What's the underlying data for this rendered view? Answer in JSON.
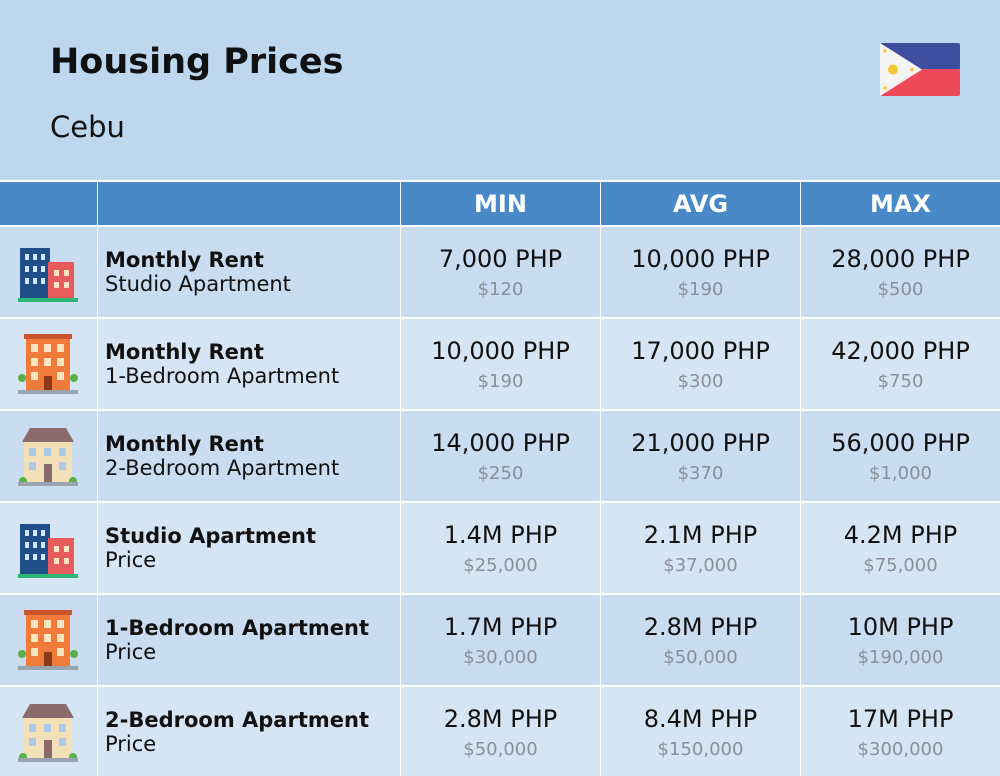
{
  "header": {
    "title": "Housing Prices",
    "subtitle": "Cebu"
  },
  "table": {
    "columns": [
      "MIN",
      "AVG",
      "MAX"
    ],
    "rows": [
      {
        "title": "Monthly Rent",
        "subtitle": "Studio Apartment",
        "values": [
          {
            "main": "7,000 PHP",
            "sub": "$120"
          },
          {
            "main": "10,000 PHP",
            "sub": "$190"
          },
          {
            "main": "28,000 PHP",
            "sub": "$500"
          }
        ]
      },
      {
        "title": "Monthly Rent",
        "subtitle": "1-Bedroom Apartment",
        "values": [
          {
            "main": "10,000 PHP",
            "sub": "$190"
          },
          {
            "main": "17,000 PHP",
            "sub": "$300"
          },
          {
            "main": "42,000 PHP",
            "sub": "$750"
          }
        ]
      },
      {
        "title": "Monthly Rent",
        "subtitle": "2-Bedroom Apartment",
        "values": [
          {
            "main": "14,000 PHP",
            "sub": "$250"
          },
          {
            "main": "21,000 PHP",
            "sub": "$370"
          },
          {
            "main": "56,000 PHP",
            "sub": "$1,000"
          }
        ]
      },
      {
        "title": "Studio Apartment",
        "subtitle": "Price",
        "values": [
          {
            "main": "1.4M PHP",
            "sub": "$25,000"
          },
          {
            "main": "2.1M PHP",
            "sub": "$37,000"
          },
          {
            "main": "4.2M PHP",
            "sub": "$75,000"
          }
        ]
      },
      {
        "title": "1-Bedroom Apartment",
        "subtitle": "Price",
        "values": [
          {
            "main": "1.7M PHP",
            "sub": "$30,000"
          },
          {
            "main": "2.8M PHP",
            "sub": "$50,000"
          },
          {
            "main": "10M PHP",
            "sub": "$190,000"
          }
        ]
      },
      {
        "title": "2-Bedroom Apartment",
        "subtitle": "Price",
        "values": [
          {
            "main": "2.8M PHP",
            "sub": "$50,000"
          },
          {
            "main": "8.4M PHP",
            "sub": "$150,000"
          },
          {
            "main": "17M PHP",
            "sub": "$300,000"
          }
        ]
      }
    ]
  }
}
